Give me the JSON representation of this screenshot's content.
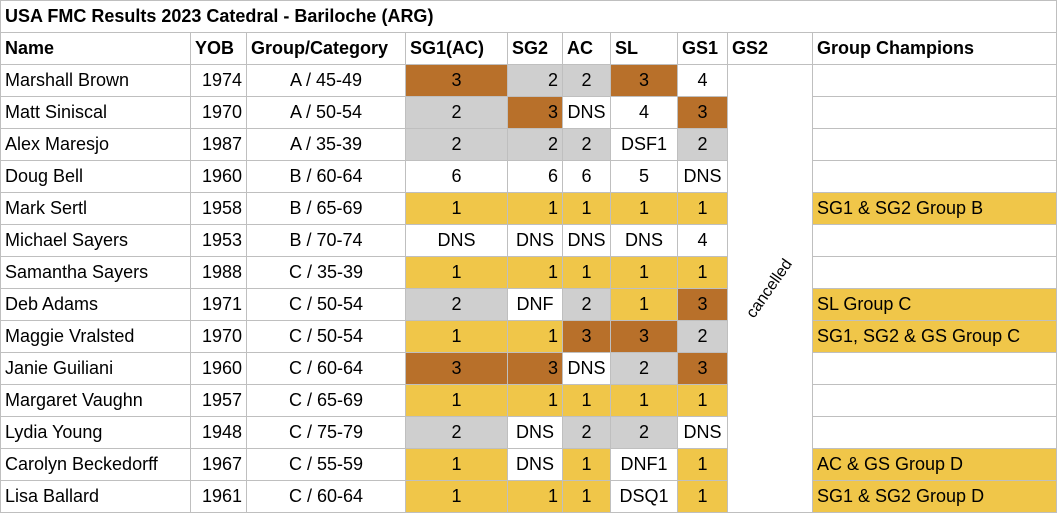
{
  "title": "USA FMC Results 2023 Catedral - Bariloche (ARG)",
  "columns": [
    "Name",
    "YOB",
    "Group/Category",
    "SG1(AC)",
    "SG2",
    "AC",
    "SL",
    "GS1",
    "GS2",
    "Group Champions"
  ],
  "gs2_note": "cancelled",
  "colors": {
    "bronze": "#b8702a",
    "silver": "#cfcfcf",
    "gold": "#f0c649"
  },
  "rows": [
    {
      "name": "Marshall Brown",
      "yob": "1974",
      "group": "A / 45-49",
      "sg1": {
        "v": "3",
        "m": "bronze",
        "a": "c"
      },
      "sg2": {
        "v": "2",
        "m": "silver",
        "a": "r"
      },
      "ac": {
        "v": "2",
        "m": "silver",
        "a": "c"
      },
      "sl": {
        "v": "3",
        "m": "bronze",
        "a": "c"
      },
      "gs1": {
        "v": "4",
        "m": "",
        "a": "c"
      },
      "champ": ""
    },
    {
      "name": "Matt Siniscal",
      "yob": "1970",
      "group": "A / 50-54",
      "sg1": {
        "v": "2",
        "m": "silver",
        "a": "c"
      },
      "sg2": {
        "v": "3",
        "m": "bronze",
        "a": "r"
      },
      "ac": {
        "v": "DNS",
        "m": "",
        "a": "c"
      },
      "sl": {
        "v": "4",
        "m": "",
        "a": "c"
      },
      "gs1": {
        "v": "3",
        "m": "bronze",
        "a": "c"
      },
      "champ": ""
    },
    {
      "name": "Alex Maresjo",
      "yob": "1987",
      "group": "A / 35-39",
      "sg1": {
        "v": "2",
        "m": "silver",
        "a": "c"
      },
      "sg2": {
        "v": "2",
        "m": "silver",
        "a": "r"
      },
      "ac": {
        "v": "2",
        "m": "silver",
        "a": "c"
      },
      "sl": {
        "v": "DSF1",
        "m": "",
        "a": "c"
      },
      "gs1": {
        "v": "2",
        "m": "silver",
        "a": "c"
      },
      "champ": ""
    },
    {
      "name": "Doug Bell",
      "yob": "1960",
      "group": "B / 60-64",
      "sg1": {
        "v": "6",
        "m": "",
        "a": "c"
      },
      "sg2": {
        "v": "6",
        "m": "",
        "a": "r"
      },
      "ac": {
        "v": "6",
        "m": "",
        "a": "c"
      },
      "sl": {
        "v": "5",
        "m": "",
        "a": "c"
      },
      "gs1": {
        "v": "DNS",
        "m": "",
        "a": "c"
      },
      "champ": ""
    },
    {
      "name": "Mark Sertl",
      "yob": "1958",
      "group": "B / 65-69",
      "sg1": {
        "v": "1",
        "m": "gold",
        "a": "c"
      },
      "sg2": {
        "v": "1",
        "m": "gold",
        "a": "r"
      },
      "ac": {
        "v": "1",
        "m": "gold",
        "a": "c"
      },
      "sl": {
        "v": "1",
        "m": "gold",
        "a": "c"
      },
      "gs1": {
        "v": "1",
        "m": "gold",
        "a": "c"
      },
      "champ": "SG1 & SG2 Group B"
    },
    {
      "name": "Michael Sayers",
      "yob": "1953",
      "group": "B / 70-74",
      "sg1": {
        "v": "DNS",
        "m": "",
        "a": "c"
      },
      "sg2": {
        "v": "DNS",
        "m": "",
        "a": "c"
      },
      "ac": {
        "v": "DNS",
        "m": "",
        "a": "c"
      },
      "sl": {
        "v": "DNS",
        "m": "",
        "a": "c"
      },
      "gs1": {
        "v": "4",
        "m": "",
        "a": "c"
      },
      "champ": ""
    },
    {
      "name": "Samantha Sayers",
      "yob": "1988",
      "group": "C / 35-39",
      "sg1": {
        "v": "1",
        "m": "gold",
        "a": "c"
      },
      "sg2": {
        "v": "1",
        "m": "gold",
        "a": "r"
      },
      "ac": {
        "v": "1",
        "m": "gold",
        "a": "c"
      },
      "sl": {
        "v": "1",
        "m": "gold",
        "a": "c"
      },
      "gs1": {
        "v": "1",
        "m": "gold",
        "a": "c"
      },
      "champ": ""
    },
    {
      "name": "Deb Adams",
      "yob": "1971",
      "group": "C / 50-54",
      "sg1": {
        "v": "2",
        "m": "silver",
        "a": "c"
      },
      "sg2": {
        "v": "DNF",
        "m": "",
        "a": "c"
      },
      "ac": {
        "v": "2",
        "m": "silver",
        "a": "c"
      },
      "sl": {
        "v": "1",
        "m": "gold",
        "a": "c"
      },
      "gs1": {
        "v": "3",
        "m": "bronze",
        "a": "c"
      },
      "champ": "SL Group C"
    },
    {
      "name": "Maggie Vralsted",
      "yob": "1970",
      "group": "C / 50-54",
      "sg1": {
        "v": "1",
        "m": "gold",
        "a": "c"
      },
      "sg2": {
        "v": "1",
        "m": "gold",
        "a": "r"
      },
      "ac": {
        "v": "3",
        "m": "bronze",
        "a": "c"
      },
      "sl": {
        "v": "3",
        "m": "bronze",
        "a": "c"
      },
      "gs1": {
        "v": "2",
        "m": "silver",
        "a": "c"
      },
      "champ": "SG1, SG2 & GS Group C"
    },
    {
      "name": "Janie Guiliani",
      "yob": "1960",
      "group": "C / 60-64",
      "sg1": {
        "v": "3",
        "m": "bronze",
        "a": "c"
      },
      "sg2": {
        "v": "3",
        "m": "bronze",
        "a": "r"
      },
      "ac": {
        "v": "DNS",
        "m": "",
        "a": "c"
      },
      "sl": {
        "v": "2",
        "m": "silver",
        "a": "c"
      },
      "gs1": {
        "v": "3",
        "m": "bronze",
        "a": "c"
      },
      "champ": ""
    },
    {
      "name": "Margaret Vaughn",
      "yob": "1957",
      "group": "C / 65-69",
      "sg1": {
        "v": "1",
        "m": "gold",
        "a": "c"
      },
      "sg2": {
        "v": "1",
        "m": "gold",
        "a": "r"
      },
      "ac": {
        "v": "1",
        "m": "gold",
        "a": "c"
      },
      "sl": {
        "v": "1",
        "m": "gold",
        "a": "c"
      },
      "gs1": {
        "v": "1",
        "m": "gold",
        "a": "c"
      },
      "champ": ""
    },
    {
      "name": "Lydia Young",
      "yob": "1948",
      "group": "C / 75-79",
      "sg1": {
        "v": "2",
        "m": "silver",
        "a": "c"
      },
      "sg2": {
        "v": "DNS",
        "m": "",
        "a": "c"
      },
      "ac": {
        "v": "2",
        "m": "silver",
        "a": "c"
      },
      "sl": {
        "v": "2",
        "m": "silver",
        "a": "c"
      },
      "gs1": {
        "v": "DNS",
        "m": "",
        "a": "c"
      },
      "champ": ""
    },
    {
      "name": "Carolyn Beckedorff",
      "yob": "1967",
      "group": "C / 55-59",
      "sg1": {
        "v": "1",
        "m": "gold",
        "a": "c"
      },
      "sg2": {
        "v": "DNS",
        "m": "",
        "a": "c"
      },
      "ac": {
        "v": "1",
        "m": "gold",
        "a": "c"
      },
      "sl": {
        "v": "DNF1",
        "m": "",
        "a": "c"
      },
      "gs1": {
        "v": "1",
        "m": "gold",
        "a": "c"
      },
      "champ": "AC & GS Group D"
    },
    {
      "name": "Lisa Ballard",
      "yob": "1961",
      "group": "C / 60-64",
      "sg1": {
        "v": "1",
        "m": "gold",
        "a": "c"
      },
      "sg2": {
        "v": "1",
        "m": "gold",
        "a": "r"
      },
      "ac": {
        "v": "1",
        "m": "gold",
        "a": "c"
      },
      "sl": {
        "v": "DSQ1",
        "m": "",
        "a": "c"
      },
      "gs1": {
        "v": "1",
        "m": "gold",
        "a": "c"
      },
      "champ": "SG1 & SG2 Group D"
    }
  ]
}
